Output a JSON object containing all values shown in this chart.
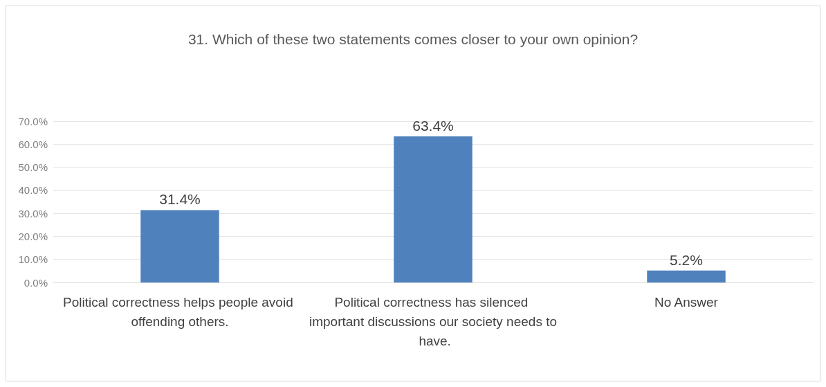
{
  "chart_data": {
    "type": "bar",
    "title": "31. Which of these two statements comes closer to your own opinion?",
    "categories": [
      "Political correctness helps people avoid offending others.",
      "Political correctness has silenced important discussions our society needs to have.",
      "No Answer"
    ],
    "values": [
      31.4,
      63.4,
      5.2
    ],
    "value_labels": [
      "31.4%",
      "63.4%",
      "5.2%"
    ],
    "color": "#4f81bd",
    "ylim": [
      0,
      70
    ],
    "yticks": [
      {
        "value": 0,
        "label": "0.0%"
      },
      {
        "value": 10,
        "label": "10.0%"
      },
      {
        "value": 20,
        "label": "20.0%"
      },
      {
        "value": 30,
        "label": "30.0%"
      },
      {
        "value": 40,
        "label": "40.0%"
      },
      {
        "value": 50,
        "label": "50.0%"
      },
      {
        "value": 60,
        "label": "60.0%"
      },
      {
        "value": 70,
        "label": "70.0%"
      }
    ],
    "grid": "y"
  }
}
